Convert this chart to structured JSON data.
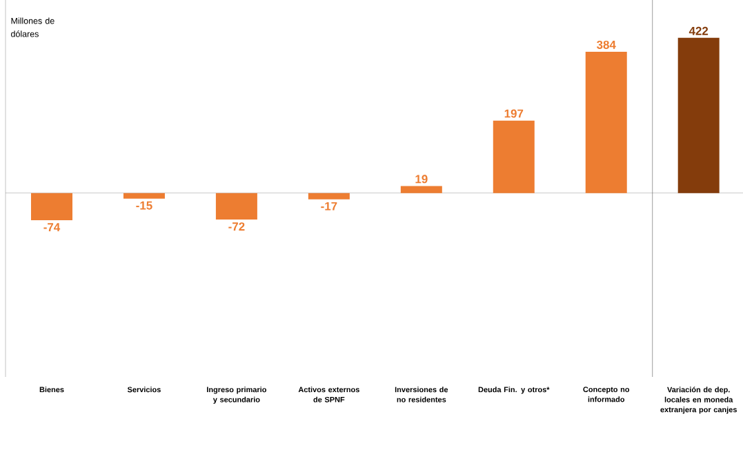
{
  "chart_data": {
    "type": "bar",
    "ylabel": "Millones de dólares",
    "categories": [
      "Bienes",
      "Servicios",
      "Ingreso primario y secundario",
      "Activos externos de SPNF",
      "Inversiones de no residentes",
      "Deuda Fin. y otros*",
      "Concepto no informado",
      "Variación de dep. locales en moneda extranjera por canjes"
    ],
    "values": [
      -74,
      -15,
      -72,
      -17,
      19,
      197,
      384,
      422
    ],
    "colors": [
      "#ed7d31",
      "#ed7d31",
      "#ed7d31",
      "#ed7d31",
      "#ed7d31",
      "#ed7d31",
      "#ed7d31",
      "#843c0c"
    ],
    "ylim": [
      -500,
      525
    ],
    "data_labels": true
  }
}
